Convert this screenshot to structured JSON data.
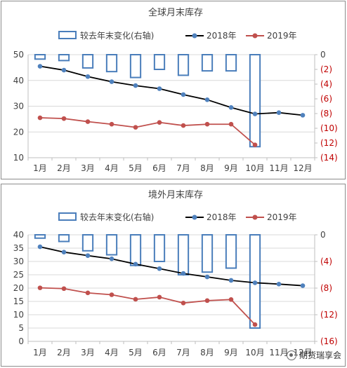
{
  "watermark": {
    "text": "期货瑞享会"
  },
  "colors": {
    "bar_stroke": "#4a7ebb",
    "series_2018": "#000000",
    "series_2018_marker": "#4f81bd",
    "series_2019": "#c0504d",
    "right_axis_label": "#c00000",
    "grid": "#d9d9d9"
  },
  "chart_data": [
    {
      "type": "bar+line",
      "title": "全球月末库存",
      "categories": [
        "1月",
        "2月",
        "3月",
        "4月",
        "5月",
        "6月",
        "7月",
        "8月",
        "9月",
        "10月",
        "11月",
        "12月"
      ],
      "left_axis": {
        "ylim": [
          10,
          50
        ],
        "ticks": [
          "10",
          "20",
          "30",
          "40",
          "50"
        ]
      },
      "right_axis": {
        "ylim": [
          0,
          -14
        ],
        "ticks": [
          "0",
          "(2)",
          "(4)",
          "(6)",
          "(8)",
          "(10)",
          "(12)",
          "(14)"
        ],
        "scale": "inverted"
      },
      "legend": [
        "较去年末变化(右轴)",
        "2018年",
        "2019年"
      ],
      "legend_position": "top",
      "series": [
        {
          "name": "较去年末变化(右轴)",
          "type": "bar",
          "axis": "right",
          "values": [
            -0.6,
            -0.8,
            -1.8,
            -2.3,
            -3.1,
            -2.0,
            -2.8,
            -2.2,
            -2.2,
            -12.5,
            null,
            null
          ]
        },
        {
          "name": "2018年",
          "type": "line",
          "axis": "left",
          "values": [
            45.5,
            44.0,
            41.5,
            39.5,
            38.0,
            36.8,
            34.5,
            32.5,
            29.5,
            27.0,
            27.5,
            26.5
          ]
        },
        {
          "name": "2019年",
          "type": "line",
          "axis": "left",
          "values": [
            25.5,
            25.2,
            24.0,
            23.0,
            21.8,
            23.7,
            22.5,
            23.0,
            23.0,
            15.0,
            null,
            null
          ]
        }
      ]
    },
    {
      "type": "bar+line",
      "title": "境外月末库存",
      "categories": [
        "1月",
        "2月",
        "3月",
        "4月",
        "5月",
        "6月",
        "7月",
        "8月",
        "9月",
        "10月",
        "11月",
        "12月"
      ],
      "left_axis": {
        "ylim": [
          0,
          40
        ],
        "ticks": [
          "0",
          "5",
          "10",
          "15",
          "20",
          "25",
          "30",
          "35",
          "40"
        ]
      },
      "right_axis": {
        "ylim": [
          0,
          -16
        ],
        "ticks": [
          "0",
          "(4)",
          "(8)",
          "(12)",
          "(16)"
        ],
        "scale": "inverted"
      },
      "legend": [
        "较去年末变化(右轴)",
        "2018年",
        "2019年"
      ],
      "legend_position": "top",
      "series": [
        {
          "name": "较去年末变化(右轴)",
          "type": "bar",
          "axis": "right",
          "values": [
            -0.5,
            -1.0,
            -2.4,
            -3.0,
            -4.6,
            -4.0,
            -6.0,
            -5.6,
            -5.0,
            -14.0,
            null,
            null
          ]
        },
        {
          "name": "2018年",
          "type": "line",
          "axis": "left",
          "values": [
            35.5,
            33.5,
            32.2,
            31.0,
            29.0,
            27.3,
            25.5,
            24.2,
            22.9,
            22.0,
            21.5,
            20.9
          ]
        },
        {
          "name": "2019年",
          "type": "line",
          "axis": "left",
          "values": [
            20.1,
            19.8,
            18.2,
            17.5,
            15.8,
            16.6,
            14.4,
            15.3,
            15.7,
            6.3,
            null,
            null
          ]
        }
      ]
    }
  ]
}
